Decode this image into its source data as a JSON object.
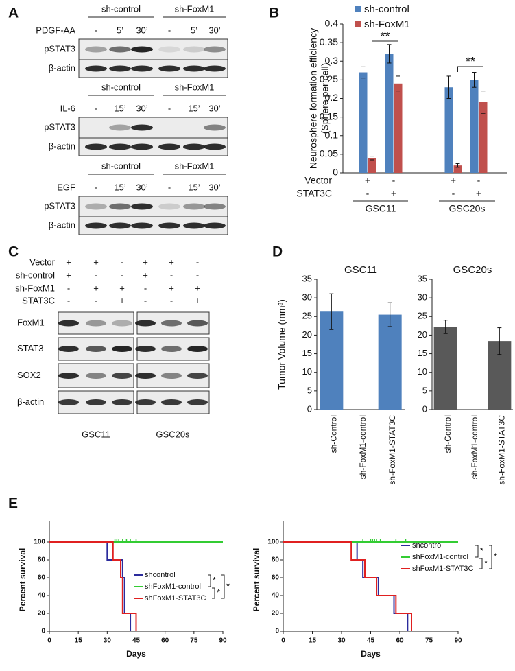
{
  "figure": {
    "panel_labels": [
      "A",
      "B",
      "C",
      "D",
      "E"
    ],
    "A": {
      "blots": [
        {
          "groups": [
            "sh-control",
            "sh-FoxM1"
          ],
          "treatment": "PDGF-AA",
          "lanes": [
            "-",
            "5’",
            "30’",
            "-",
            "5’",
            "30’"
          ],
          "rows": [
            "pSTAT3",
            "β-actin"
          ]
        },
        {
          "groups": [
            "sh-control",
            "sh-FoxM1"
          ],
          "treatment": "IL-6",
          "lanes": [
            "-",
            "15’",
            "30’",
            "-",
            "15’",
            "30’"
          ],
          "rows": [
            "pSTAT3",
            "β-actin"
          ]
        },
        {
          "groups": [
            "sh-control",
            "sh-FoxM1"
          ],
          "treatment": "EGF",
          "lanes": [
            "-",
            "15’",
            "30’",
            "-",
            "15’",
            "30’"
          ],
          "rows": [
            "pSTAT3",
            "β-actin"
          ]
        }
      ]
    },
    "C": {
      "conditions": [
        {
          "label": "Vector",
          "values": [
            "+",
            "+",
            "-",
            "+",
            "+",
            "-"
          ]
        },
        {
          "label": "sh-control",
          "values": [
            "+",
            "-",
            "-",
            "+",
            "-",
            "-"
          ]
        },
        {
          "label": "sh-FoxM1",
          "values": [
            "-",
            "+",
            "+",
            "-",
            "+",
            "+"
          ]
        },
        {
          "label": "STAT3C",
          "values": [
            "-",
            "-",
            "+",
            "-",
            "-",
            "+"
          ]
        }
      ],
      "rows": [
        "FoxM1",
        "STAT3",
        "SOX2",
        "β-actin"
      ],
      "cell_lines": [
        "GSC11",
        "GSC20s"
      ]
    }
  },
  "chart_data": [
    {
      "type": "groupbar",
      "ylabel": [
        "Neurosphere  formation efficiency",
        "(Sphere per cell)"
      ],
      "categories": [
        null,
        null,
        null,
        null
      ],
      "series": [
        {
          "name": "sh-control",
          "color": "#4f81bd",
          "values": [
            0.27,
            0.32,
            0.23,
            0.25
          ],
          "errors": [
            0.015,
            0.025,
            0.03,
            0.02
          ]
        },
        {
          "name": "sh-FoxM1",
          "color": "#c0504d",
          "values": [
            0.04,
            0.24,
            0.02,
            0.19
          ],
          "errors": [
            0.005,
            0.02,
            0.005,
            0.03
          ]
        }
      ],
      "ylim": [
        0,
        0.4
      ],
      "yticks": [
        0,
        0.05,
        0.1,
        0.15,
        0.2,
        0.25,
        0.3,
        0.35,
        0.4
      ],
      "x_conditions": [
        {
          "label": "Vector",
          "values": [
            "+",
            "-",
            "+",
            "-"
          ]
        },
        {
          "label": "STAT3C",
          "values": [
            "-",
            "+",
            "-",
            "+"
          ]
        }
      ],
      "groups": [
        "GSC11",
        "GSC20s"
      ],
      "annotations": [
        "**",
        "**"
      ],
      "legend": "top-left"
    },
    {
      "type": "bar",
      "title": "GSC11",
      "ylabel": "Tumor Volume (mm³)",
      "categories": [
        "sh-Control",
        "sh-FoxM1-control",
        "sh-FoxM1-STAT3C"
      ],
      "values": [
        26.3,
        0,
        25.5
      ],
      "errors": [
        4.8,
        null,
        3.2
      ],
      "color": "#4f81bd",
      "ylim": [
        0,
        35
      ],
      "yticks": [
        0,
        5,
        10,
        15,
        20,
        25,
        30,
        35
      ]
    },
    {
      "type": "bar",
      "title": "GSC20s",
      "categories": [
        "sh-Control",
        "sh-FoxM1-control",
        "sh-FoxM1-STAT3C"
      ],
      "values": [
        22.2,
        0,
        18.4
      ],
      "errors": [
        1.8,
        null,
        3.6
      ],
      "color": "#595959",
      "ylim": [
        0,
        35
      ],
      "yticks": [
        0,
        5,
        10,
        15,
        20,
        25,
        30,
        35
      ]
    },
    {
      "type": "step",
      "xlabel": "Days",
      "ylabel": "Percent survival",
      "xlim": [
        0,
        90
      ],
      "xticks": [
        0,
        15,
        30,
        45,
        60,
        75,
        90
      ],
      "ylim": [
        0,
        100
      ],
      "yticks": [
        0,
        20,
        40,
        60,
        80,
        100
      ],
      "series": [
        {
          "name": "shcontrol",
          "color": "#2b2b9c",
          "x": [
            0,
            30,
            38,
            39,
            42
          ],
          "values": [
            100,
            80,
            60,
            20,
            0
          ]
        },
        {
          "name": "shFoxM1-control",
          "color": "#33cc33",
          "x": [
            0,
            90
          ],
          "values": [
            100,
            100
          ],
          "censored_x": [
            34,
            35,
            36,
            38,
            40,
            42,
            45
          ],
          "censored_values": [
            100,
            100,
            100,
            100,
            100,
            100,
            100
          ]
        },
        {
          "name": "shFoxM1-STAT3C",
          "color": "#e02020",
          "x": [
            0,
            33,
            37,
            38,
            45
          ],
          "values": [
            100,
            80,
            60,
            20,
            0
          ]
        }
      ],
      "annotations": [
        "*",
        "*",
        "*"
      ],
      "legend": "lower-right"
    },
    {
      "type": "step",
      "xlabel": "Days",
      "ylabel": "Percent survival",
      "xlim": [
        0,
        90
      ],
      "xticks": [
        0,
        15,
        30,
        45,
        60,
        75,
        90
      ],
      "ylim": [
        0,
        100
      ],
      "yticks": [
        0,
        20,
        40,
        60,
        80,
        100
      ],
      "series": [
        {
          "name": "shcontrol",
          "color": "#2b2b9c",
          "x": [
            0,
            38,
            41,
            49,
            57,
            64
          ],
          "values": [
            100,
            80,
            60,
            40,
            20,
            0
          ]
        },
        {
          "name": "shFoxM1-control",
          "color": "#33cc33",
          "x": [
            0,
            90
          ],
          "values": [
            100,
            100
          ],
          "censored_x": [
            41,
            45,
            46,
            47,
            48,
            50,
            58,
            63
          ],
          "censored_values": [
            100,
            100,
            100,
            100,
            100,
            100,
            100,
            100
          ]
        },
        {
          "name": "shFoxM1-STAT3C",
          "color": "#e02020",
          "x": [
            0,
            35,
            42,
            48,
            58,
            66
          ],
          "values": [
            100,
            80,
            60,
            40,
            20,
            0
          ]
        }
      ],
      "annotations": [
        "*",
        "*",
        "*"
      ],
      "legend": "upper-right"
    }
  ]
}
